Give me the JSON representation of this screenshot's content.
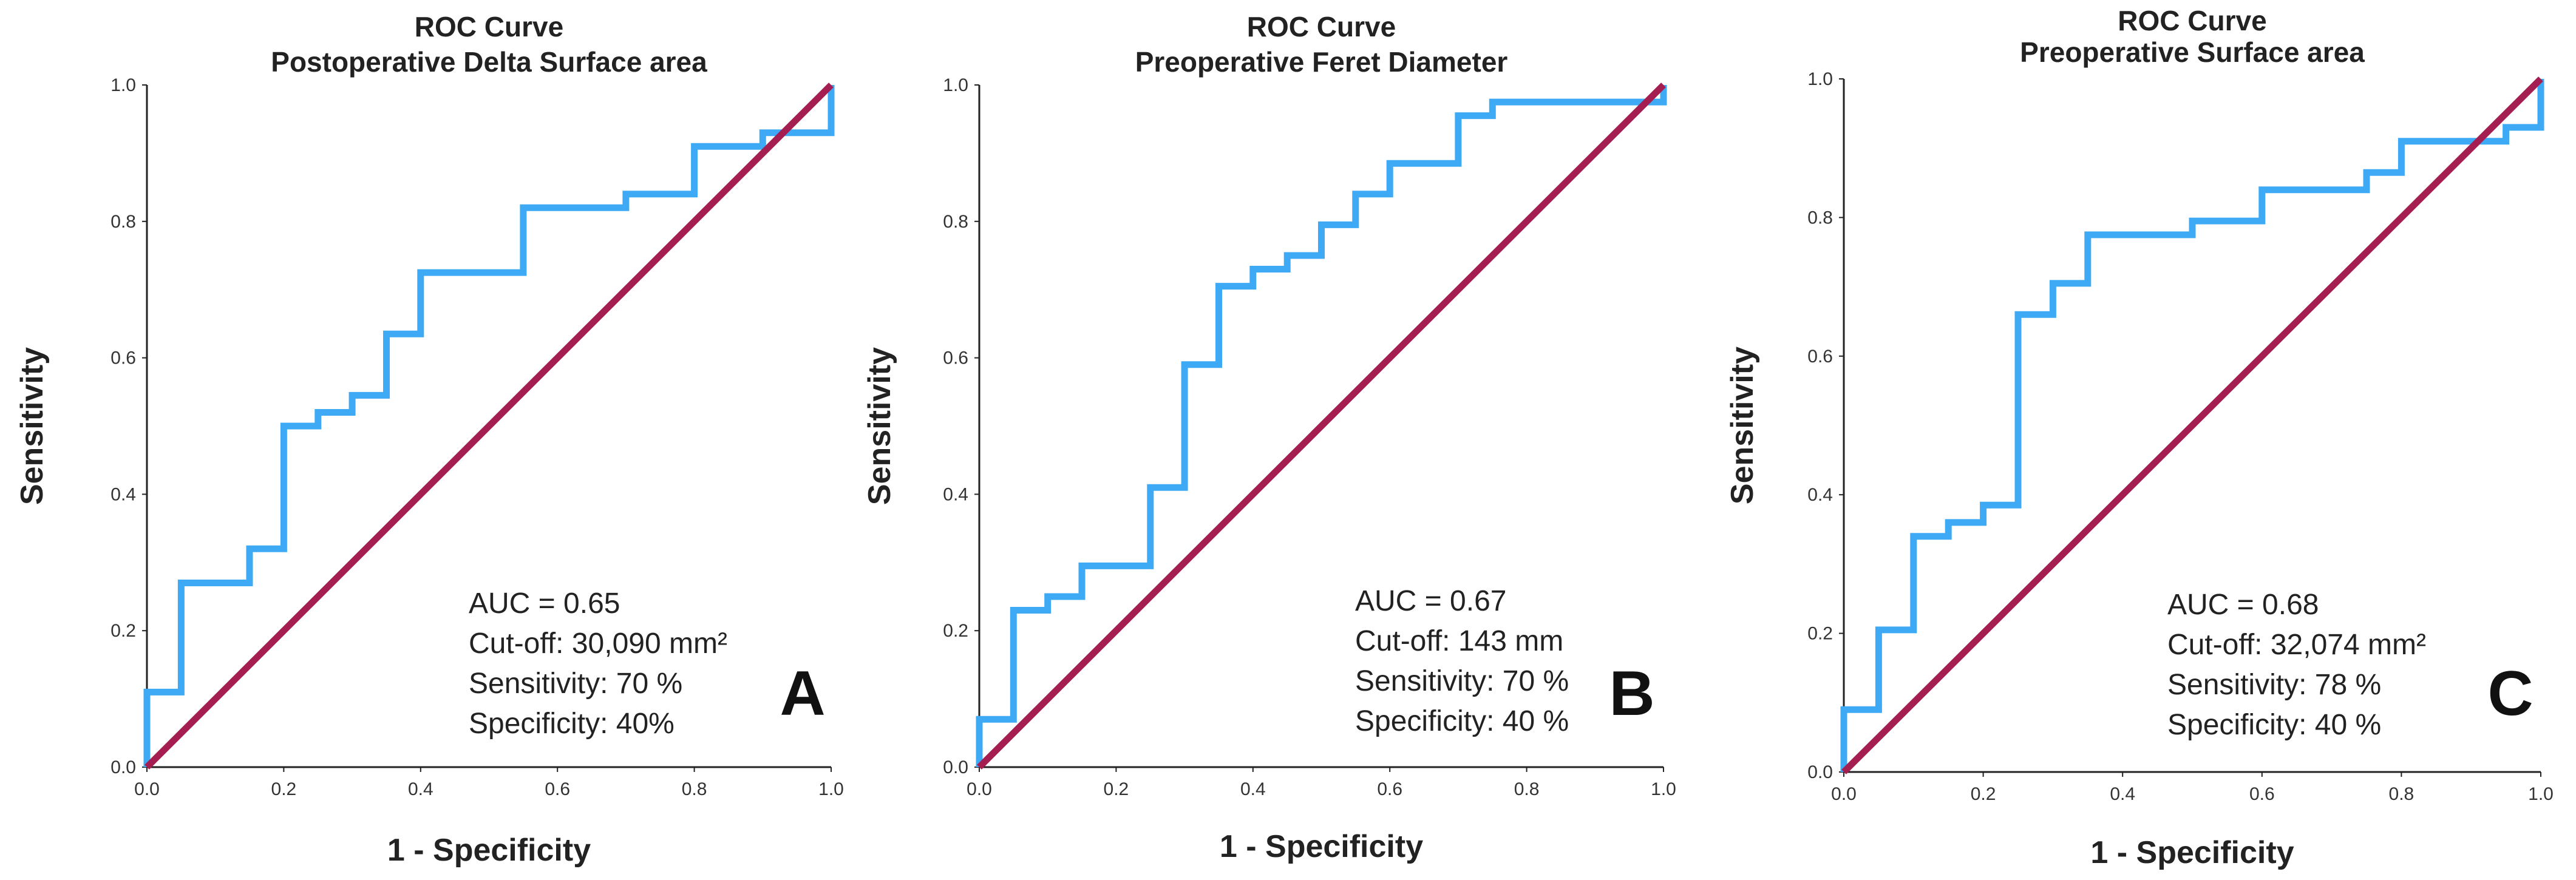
{
  "colors": {
    "roc_line": "#3eaaf5",
    "reference_line": "#a51e52",
    "axis": "#222222"
  },
  "chart_data": [
    {
      "type": "line",
      "panel": "A",
      "title": "ROC Curve",
      "subtitle": "Postoperative Delta Surface area",
      "xlabel": "1 - Specificity",
      "ylabel": "Sensitivity",
      "xlim": [
        0,
        1
      ],
      "ylim": [
        0,
        1
      ],
      "x_ticks": [
        "0.0",
        "0.2",
        "0.4",
        "0.6",
        "0.8",
        "1.0"
      ],
      "y_ticks": [
        "0.0",
        "0.2",
        "0.4",
        "0.6",
        "0.8",
        "1.0"
      ],
      "series": [
        {
          "name": "ROC curve",
          "points": [
            [
              0,
              0
            ],
            [
              0,
              0.11
            ],
            [
              0.05,
              0.11
            ],
            [
              0.05,
              0.27
            ],
            [
              0.15,
              0.27
            ],
            [
              0.15,
              0.32
            ],
            [
              0.2,
              0.32
            ],
            [
              0.2,
              0.5
            ],
            [
              0.25,
              0.5
            ],
            [
              0.25,
              0.52
            ],
            [
              0.3,
              0.52
            ],
            [
              0.3,
              0.545
            ],
            [
              0.35,
              0.545
            ],
            [
              0.35,
              0.635
            ],
            [
              0.4,
              0.635
            ],
            [
              0.4,
              0.725
            ],
            [
              0.55,
              0.725
            ],
            [
              0.55,
              0.82
            ],
            [
              0.7,
              0.82
            ],
            [
              0.7,
              0.84
            ],
            [
              0.8,
              0.84
            ],
            [
              0.8,
              0.91
            ],
            [
              0.9,
              0.91
            ],
            [
              0.9,
              0.93
            ],
            [
              1,
              0.93
            ],
            [
              1,
              1
            ]
          ]
        },
        {
          "name": "Reference line",
          "points": [
            [
              0,
              0
            ],
            [
              1,
              1
            ]
          ]
        }
      ],
      "annotations": [
        "AUC = 0.65",
        "Cut-off: 30,090 mm²",
        "Sensitivity: 70 %",
        "Specificity: 40%"
      ],
      "panel_label": "A"
    },
    {
      "type": "line",
      "panel": "B",
      "title": "ROC Curve",
      "subtitle": "Preoperative Feret Diameter",
      "xlabel": "1 - Specificity",
      "ylabel": "Sensitivity",
      "xlim": [
        0,
        1
      ],
      "ylim": [
        0,
        1
      ],
      "x_ticks": [
        "0.0",
        "0.2",
        "0.4",
        "0.6",
        "0.8",
        "1.0"
      ],
      "y_ticks": [
        "0.0",
        "0.2",
        "0.4",
        "0.6",
        "0.8",
        "1.0"
      ],
      "series": [
        {
          "name": "ROC curve",
          "points": [
            [
              0,
              0
            ],
            [
              0,
              0.07
            ],
            [
              0.05,
              0.07
            ],
            [
              0.05,
              0.23
            ],
            [
              0.1,
              0.23
            ],
            [
              0.1,
              0.25
            ],
            [
              0.15,
              0.25
            ],
            [
              0.15,
              0.295
            ],
            [
              0.25,
              0.295
            ],
            [
              0.25,
              0.41
            ],
            [
              0.3,
              0.41
            ],
            [
              0.3,
              0.59
            ],
            [
              0.35,
              0.59
            ],
            [
              0.35,
              0.705
            ],
            [
              0.4,
              0.705
            ],
            [
              0.4,
              0.73
            ],
            [
              0.45,
              0.73
            ],
            [
              0.45,
              0.75
            ],
            [
              0.5,
              0.75
            ],
            [
              0.5,
              0.795
            ],
            [
              0.55,
              0.795
            ],
            [
              0.55,
              0.84
            ],
            [
              0.6,
              0.84
            ],
            [
              0.6,
              0.885
            ],
            [
              0.7,
              0.885
            ],
            [
              0.7,
              0.955
            ],
            [
              0.75,
              0.955
            ],
            [
              0.75,
              0.975
            ],
            [
              1,
              0.975
            ],
            [
              1,
              1
            ]
          ]
        },
        {
          "name": "Reference line",
          "points": [
            [
              0,
              0
            ],
            [
              1,
              1
            ]
          ]
        }
      ],
      "annotations": [
        "AUC = 0.67",
        "Cut-off: 143 mm",
        "Sensitivity: 70 %",
        "Specificity: 40 %"
      ],
      "panel_label": "B"
    },
    {
      "type": "line",
      "panel": "C",
      "title": "ROC Curve",
      "subtitle": "Preoperative Surface area",
      "xlabel": "1 - Specificity",
      "ylabel": "Sensitivity",
      "xlim": [
        0,
        1
      ],
      "ylim": [
        0,
        1
      ],
      "x_ticks": [
        "0.0",
        "0.2",
        "0.4",
        "0.6",
        "0.8",
        "1.0"
      ],
      "y_ticks": [
        "0.0",
        "0.2",
        "0.4",
        "0.6",
        "0.8",
        "1.0"
      ],
      "series": [
        {
          "name": "ROC curve",
          "points": [
            [
              0,
              0
            ],
            [
              0,
              0.09
            ],
            [
              0.05,
              0.09
            ],
            [
              0.05,
              0.205
            ],
            [
              0.1,
              0.205
            ],
            [
              0.1,
              0.34
            ],
            [
              0.15,
              0.34
            ],
            [
              0.15,
              0.36
            ],
            [
              0.2,
              0.36
            ],
            [
              0.2,
              0.385
            ],
            [
              0.25,
              0.385
            ],
            [
              0.25,
              0.66
            ],
            [
              0.3,
              0.66
            ],
            [
              0.3,
              0.705
            ],
            [
              0.35,
              0.705
            ],
            [
              0.35,
              0.775
            ],
            [
              0.5,
              0.775
            ],
            [
              0.5,
              0.795
            ],
            [
              0.6,
              0.795
            ],
            [
              0.6,
              0.84
            ],
            [
              0.75,
              0.84
            ],
            [
              0.75,
              0.865
            ],
            [
              0.8,
              0.865
            ],
            [
              0.8,
              0.91
            ],
            [
              0.95,
              0.91
            ],
            [
              0.95,
              0.93
            ],
            [
              1,
              0.93
            ],
            [
              1,
              1
            ]
          ]
        },
        {
          "name": "Reference line",
          "points": [
            [
              0,
              0
            ],
            [
              1,
              1
            ]
          ]
        }
      ],
      "annotations": [
        "AUC = 0.68",
        "Cut-off: 32,074 mm²",
        "Sensitivity: 78 %",
        "Specificity: 40 %"
      ],
      "panel_label": "C"
    }
  ]
}
